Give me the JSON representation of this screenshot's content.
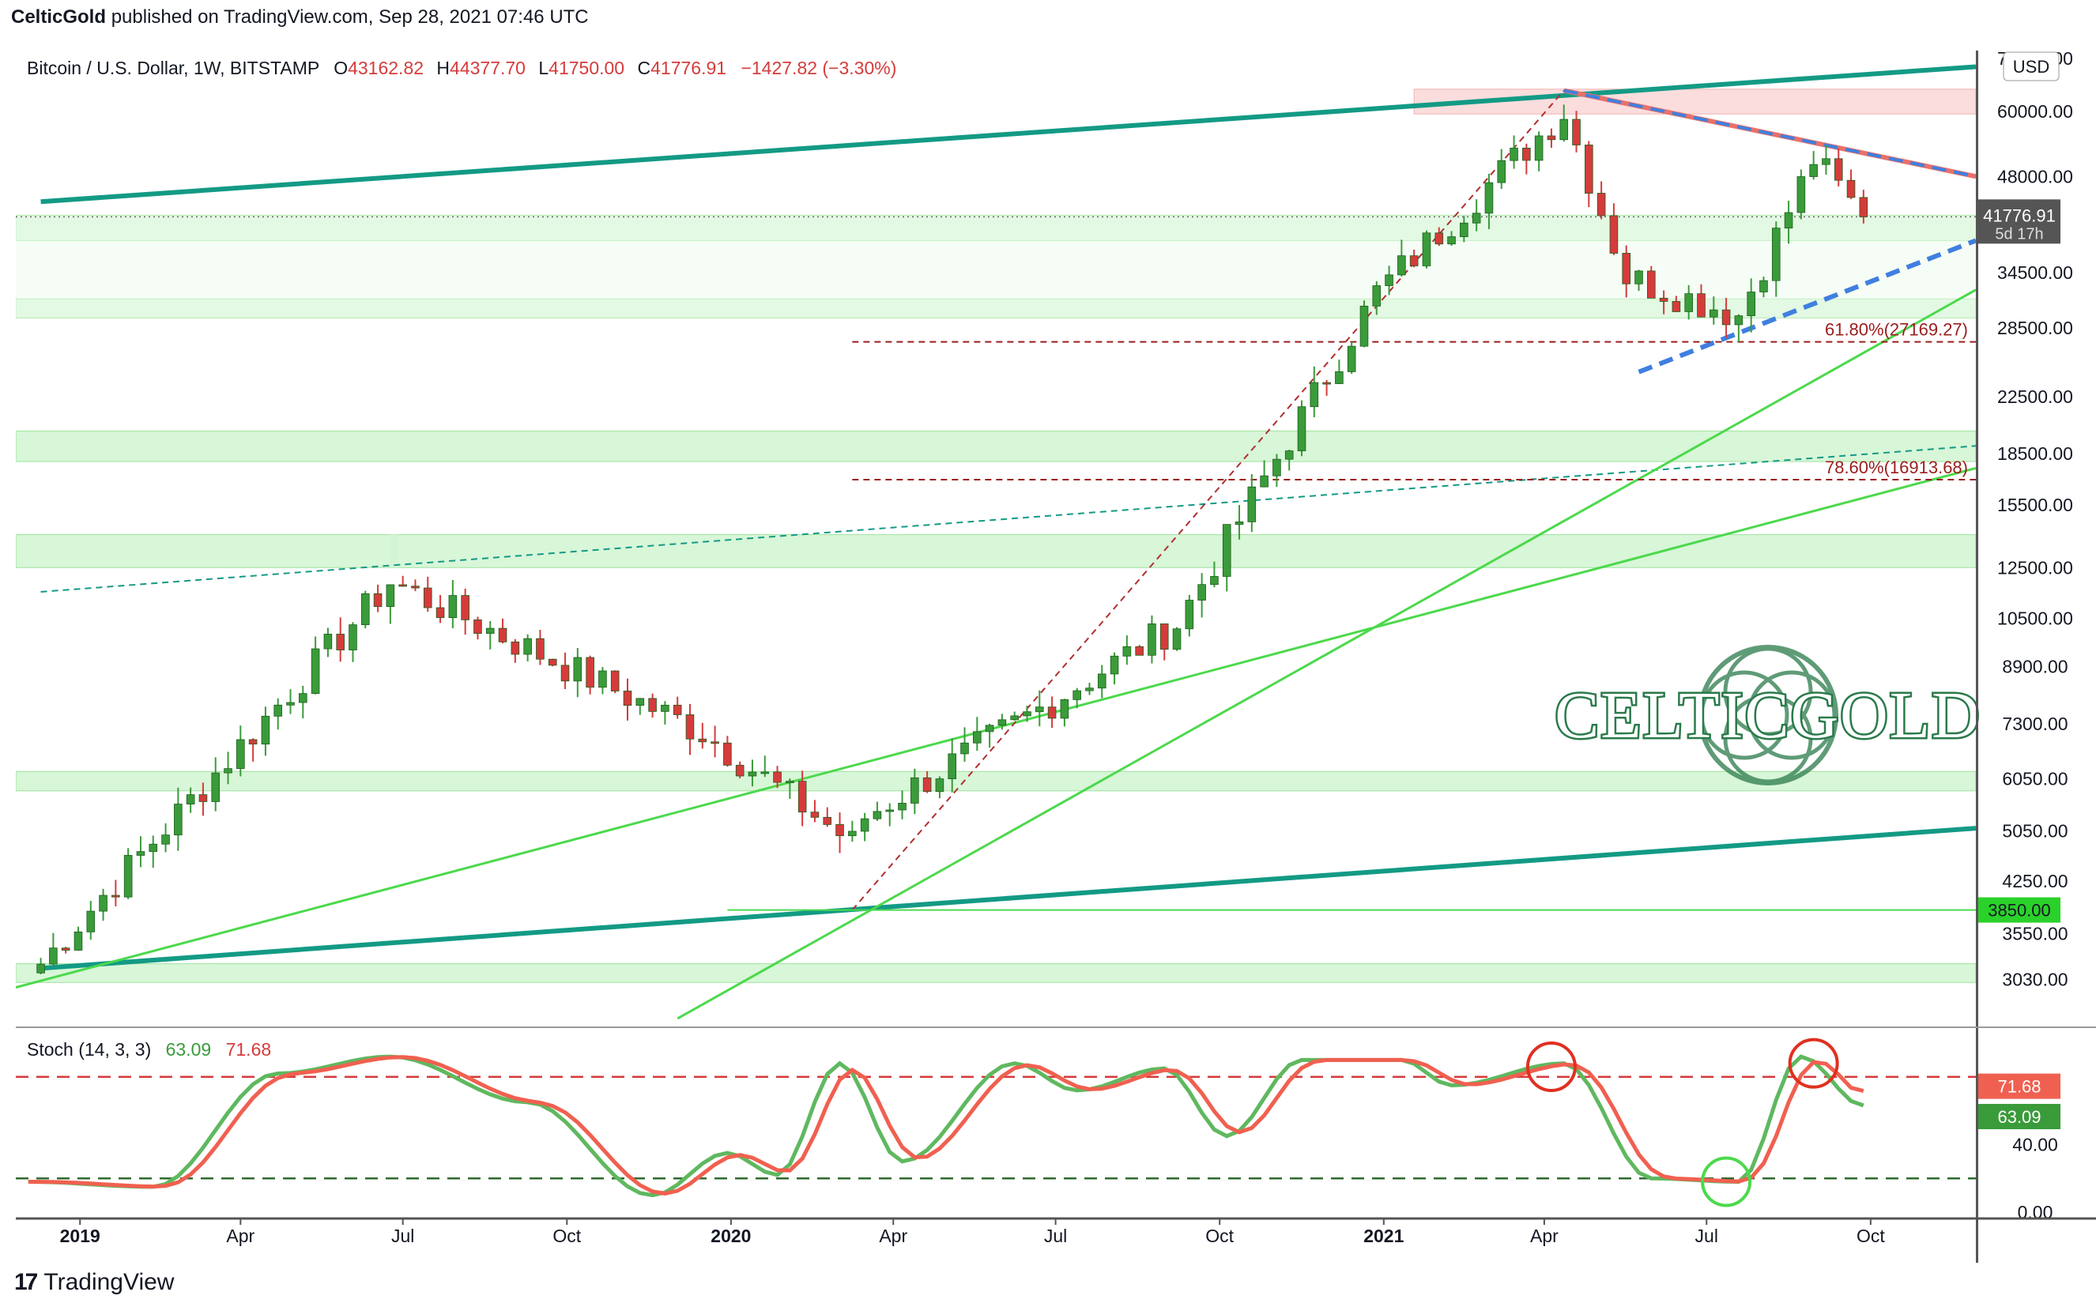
{
  "publisher": {
    "name": "CelticGold",
    "text": "published on TradingView.com, Sep 28, 2021 07:46 UTC"
  },
  "footer": {
    "brand": "TradingView",
    "mark": "17"
  },
  "watermark": {
    "text": "CELTICGOLD"
  },
  "colors": {
    "up": "#3a9b3a",
    "down": "#d63b3b",
    "teal": "#139a85",
    "lime": "#4cd94c",
    "blue": "#3f7fe0",
    "red_zone": "#f9d2d2",
    "green_zone": "#d4f5d4",
    "axis_text": "#131722"
  },
  "chart_data": [
    {
      "type": "candlestick",
      "title": "Bitcoin / U.S. Dollar, 1W, BITSTAMP",
      "ohlc_header": {
        "o_label": "O",
        "o": "43162.82",
        "h_label": "H",
        "h": "44377.70",
        "l_label": "L",
        "l": "41750.00",
        "c_label": "C",
        "c": "41776.91",
        "change": "−1427.82 (−3.30%)"
      },
      "currency": "USD",
      "y_scale": "log",
      "ylim": [
        2600,
        74000
      ],
      "xlim": [
        "2018-11-26",
        "2021-11-29"
      ],
      "y_ticks": [
        "72000.00",
        "60000.00",
        "48000.00",
        "34500.00",
        "28500.00",
        "22500.00",
        "18500.00",
        "15500.00",
        "12500.00",
        "10500.00",
        "8900.00",
        "7300.00",
        "6050.00",
        "5050.00",
        "4250.00",
        "3550.00",
        "3030.00"
      ],
      "x_ticks": [
        "2019",
        "Apr",
        "Jul",
        "Oct",
        "2020",
        "Apr",
        "Jul",
        "Oct",
        "2021",
        "Apr",
        "Jul",
        "Oct"
      ],
      "price_labels": [
        {
          "value": "41776.91",
          "sub": "5d 17h"
        },
        {
          "value": "3850.00"
        }
      ],
      "fib_levels": [
        {
          "label": "61.80%(27169.27)",
          "value": 27169.27
        },
        {
          "label": "78.60%(16913.68)",
          "value": 16913.68
        }
      ],
      "anchor_points": [
        {
          "date": "2018-12-10",
          "close": 3200
        },
        {
          "date": "2019-06-24",
          "close": 11900
        },
        {
          "date": "2019-12-16",
          "close": 7100
        },
        {
          "date": "2020-03-09",
          "close": 4850
        },
        {
          "date": "2020-03-16",
          "close": 5300
        },
        {
          "date": "2020-09-07",
          "close": 10300
        },
        {
          "date": "2020-12-28",
          "close": 32200
        },
        {
          "date": "2021-04-12",
          "close": 60000
        },
        {
          "date": "2021-05-17",
          "close": 34000
        },
        {
          "date": "2021-07-19",
          "close": 29800
        },
        {
          "date": "2021-08-30",
          "close": 51000
        },
        {
          "date": "2021-09-27",
          "close": 41777
        }
      ],
      "zones": [
        {
          "type": "resistance",
          "from": 59500,
          "to": 64800
        },
        {
          "type": "support",
          "from": 38500,
          "to": 42000
        },
        {
          "type": "support",
          "from": 29500,
          "to": 31500
        },
        {
          "type": "support",
          "from": 18000,
          "to": 20000
        },
        {
          "type": "support",
          "from": 12500,
          "to": 14000
        },
        {
          "type": "support",
          "from": 5800,
          "to": 6200
        },
        {
          "type": "support",
          "from": 3000,
          "to": 3200
        }
      ]
    },
    {
      "type": "line",
      "title": "Stoch (14, 3, 3)",
      "series": [
        {
          "name": "%K",
          "last": "63.09"
        },
        {
          "name": "%D",
          "last": "71.68"
        }
      ],
      "ylim": [
        0,
        100
      ],
      "y_ticks": [
        "40.00",
        "0.00"
      ],
      "levels": [
        80,
        20
      ],
      "anchor_points": [
        {
          "date": "2018-12-03",
          "k": 18
        },
        {
          "date": "2019-02-11",
          "k": 15
        },
        {
          "date": "2019-04-22",
          "k": 82
        },
        {
          "date": "2019-06-24",
          "k": 92
        },
        {
          "date": "2019-09-09",
          "k": 65
        },
        {
          "date": "2019-11-18",
          "k": 10
        },
        {
          "date": "2019-12-30",
          "k": 35
        },
        {
          "date": "2020-01-27",
          "k": 22
        },
        {
          "date": "2020-03-02",
          "k": 88
        },
        {
          "date": "2020-04-06",
          "k": 30
        },
        {
          "date": "2020-06-08",
          "k": 88
        },
        {
          "date": "2020-07-13",
          "k": 72
        },
        {
          "date": "2020-08-31",
          "k": 85
        },
        {
          "date": "2020-10-05",
          "k": 45
        },
        {
          "date": "2020-11-16",
          "k": 90
        },
        {
          "date": "2021-01-11",
          "k": 90
        },
        {
          "date": "2021-02-08",
          "k": 75
        },
        {
          "date": "2021-04-12",
          "k": 88
        },
        {
          "date": "2021-05-31",
          "k": 20
        },
        {
          "date": "2021-07-19",
          "k": 18
        },
        {
          "date": "2021-08-23",
          "k": 92
        },
        {
          "date": "2021-09-27",
          "k": 63
        }
      ]
    }
  ]
}
